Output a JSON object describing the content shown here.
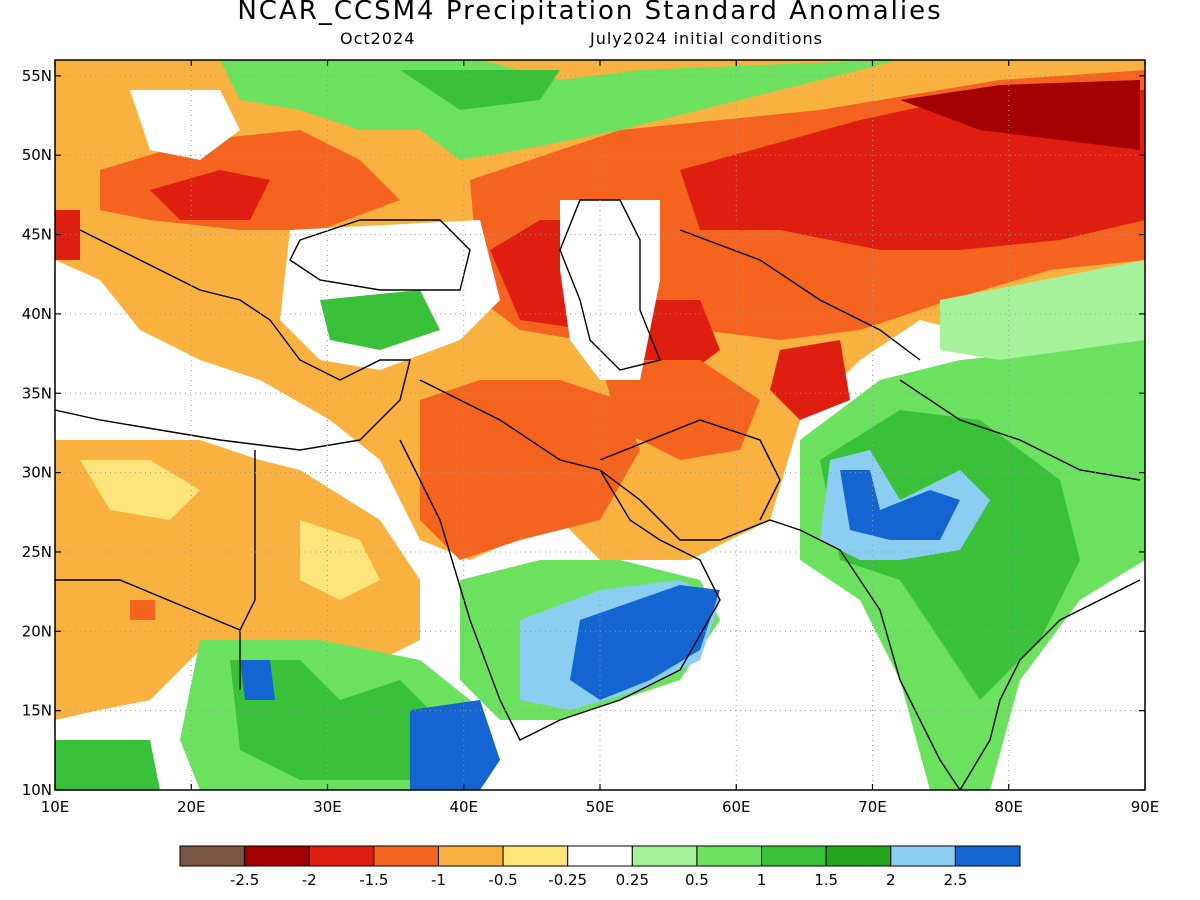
{
  "title": "NCAR_CCSM4 Precipitation Standard Anomalies",
  "subtitle_left": "Oct2024",
  "subtitle_right": "July2024 initial conditions",
  "map": {
    "lon_range": [
      10,
      90
    ],
    "lat_range": [
      10,
      56
    ],
    "lon_ticks": [
      "10E",
      "20E",
      "30E",
      "40E",
      "50E",
      "60E",
      "70E",
      "80E",
      "90E"
    ],
    "lat_ticks": [
      "10N",
      "15N",
      "20N",
      "25N",
      "30N",
      "35N",
      "40N",
      "45N",
      "50N",
      "55N"
    ],
    "grid": "dotted",
    "region": "Middle East, Central Asia and South Asia"
  },
  "colorbar": {
    "labels": [
      "-2.5",
      "-2",
      "-1.5",
      "-1",
      "-0.5",
      "-0.25",
      "0.25",
      "0.5",
      "1",
      "1.5",
      "2",
      "2.5"
    ],
    "colors": [
      "#7a5443",
      "#a50000",
      "#de1e10",
      "#f5641e",
      "#f9b240",
      "#fde57a",
      "#ffffff",
      "#a6f29b",
      "#6ce15f",
      "#39c139",
      "#24a61f",
      "#8ccdf2",
      "#1464d2"
    ]
  }
}
